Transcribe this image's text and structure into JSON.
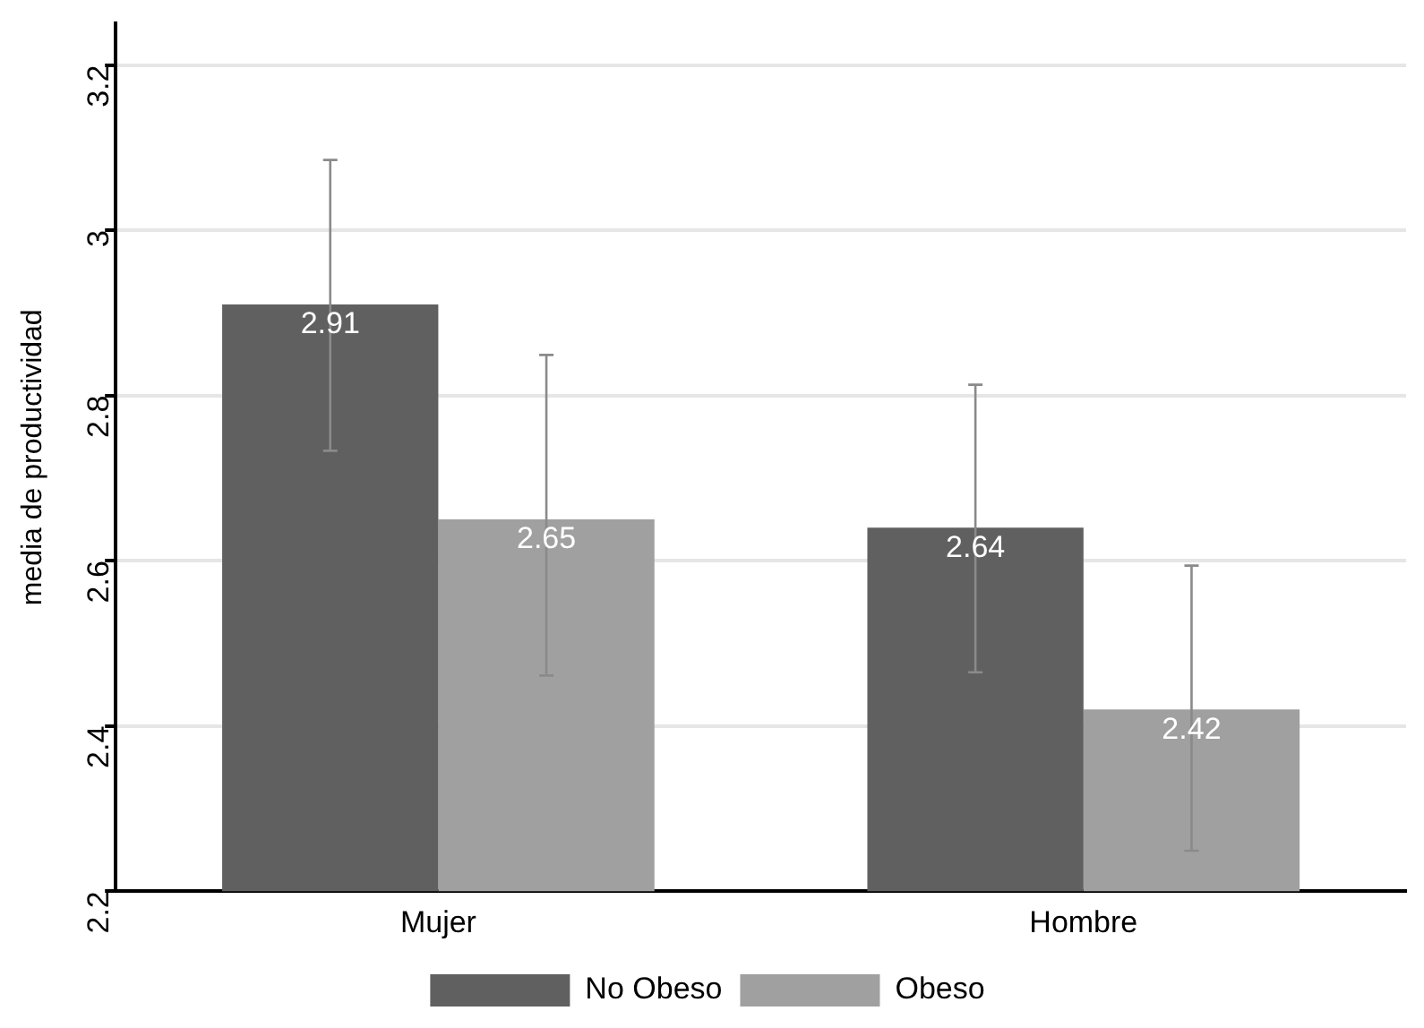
{
  "chart_data": {
    "type": "bar",
    "ylabel": "media de productividad",
    "categories": [
      "Mujer",
      "Hombre"
    ],
    "series": [
      {
        "name": "No Obeso",
        "color": "#606060",
        "values": [
          2.91,
          2.64
        ],
        "errors": [
          [
            2.733,
            3.085
          ],
          [
            2.465,
            2.813
          ]
        ]
      },
      {
        "name": "Obeso",
        "color": "#a0a0a0",
        "values": [
          2.65,
          2.42
        ],
        "errors": [
          [
            2.461,
            2.849
          ],
          [
            2.249,
            2.594
          ]
        ]
      }
    ],
    "ylim": [
      2.2,
      3.25
    ],
    "yticks": [
      2.2,
      2.4,
      2.6,
      2.8,
      3,
      3.2
    ],
    "grid": "y",
    "legend": "bottom",
    "data_labels": true
  }
}
